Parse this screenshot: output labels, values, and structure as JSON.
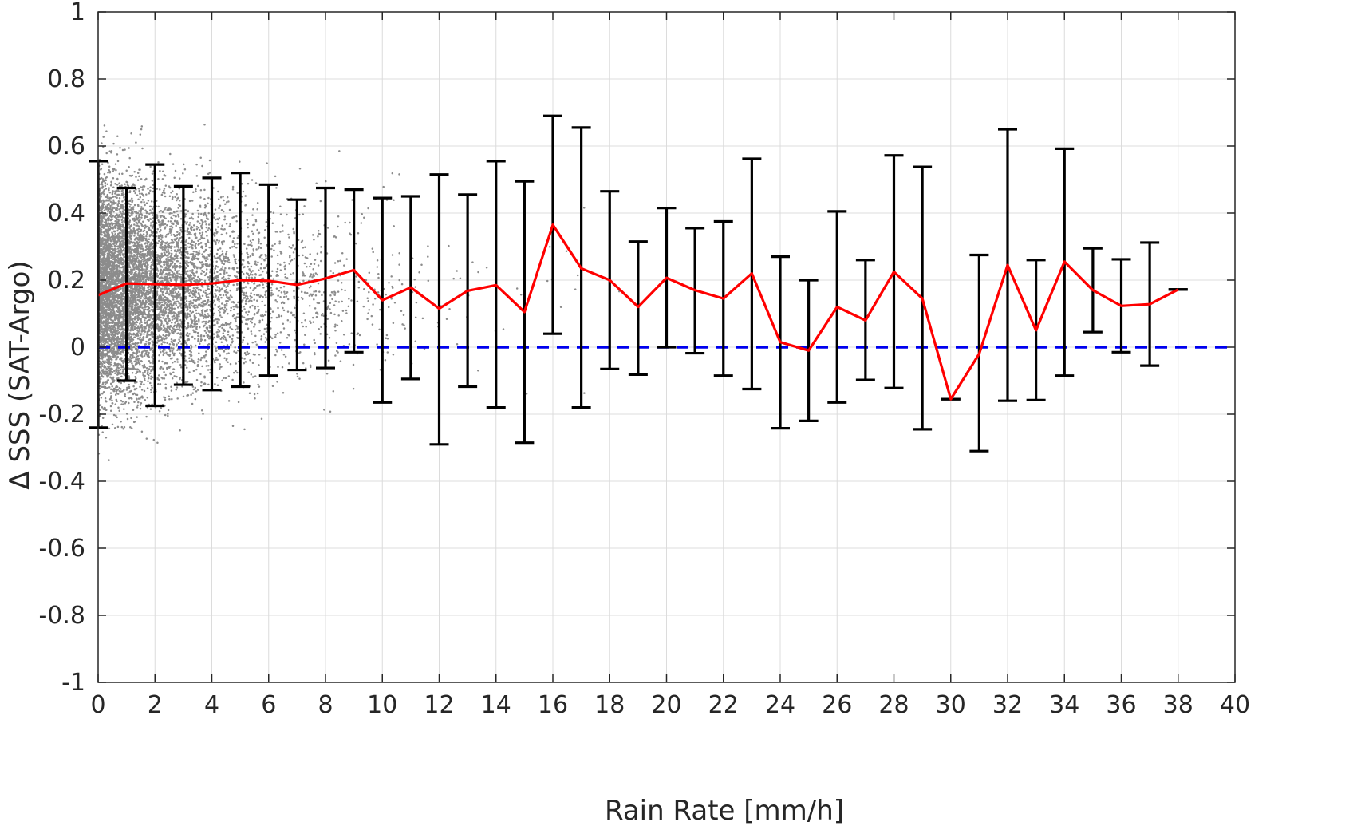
{
  "chart_data": {
    "type": "scatter",
    "title": "",
    "xlabel": "Rain Rate [mm/h]",
    "ylabel": "Δ SSS (SAT-Argo)",
    "xlim": [
      0,
      40
    ],
    "ylim": [
      -1,
      1
    ],
    "xticks": [
      0,
      2,
      4,
      6,
      8,
      10,
      12,
      14,
      16,
      18,
      20,
      22,
      24,
      26,
      28,
      30,
      32,
      34,
      36,
      38,
      40
    ],
    "yticks": [
      -1,
      -0.8,
      -0.6,
      -0.4,
      -0.2,
      0,
      0.2,
      0.4,
      0.6,
      0.8,
      1
    ],
    "xtick_labels": [
      "0",
      "2",
      "4",
      "6",
      "8",
      "10",
      "12",
      "14",
      "16",
      "18",
      "20",
      "22",
      "24",
      "26",
      "28",
      "30",
      "32",
      "34",
      "36",
      "38",
      "40"
    ],
    "ytick_labels": [
      "-1",
      "-0.8",
      "-0.6",
      "-0.4",
      "-0.2",
      "0",
      "0.2",
      "0.4",
      "0.6",
      "0.8",
      "1"
    ],
    "grid": true,
    "colors": {
      "scatter": "#8c8c8c",
      "mean_line": "#ff0000",
      "error_bar": "#000000",
      "zero_line": "#0000ee",
      "grid": "#dcdcdc",
      "axis": "#262626"
    },
    "mean_series": {
      "x": [
        0,
        1,
        2,
        3,
        4,
        5,
        6,
        7,
        8,
        9,
        10,
        11,
        12,
        13,
        14,
        15,
        16,
        17,
        18,
        19,
        20,
        21,
        22,
        23,
        24,
        25,
        26,
        27,
        28,
        29,
        30,
        31,
        32,
        33,
        34,
        35,
        36,
        37,
        38
      ],
      "y": [
        0.155,
        0.19,
        0.188,
        0.186,
        0.19,
        0.2,
        0.198,
        0.186,
        0.205,
        0.23,
        0.14,
        0.178,
        0.115,
        0.168,
        0.185,
        0.105,
        0.365,
        0.235,
        0.2,
        0.12,
        0.207,
        0.17,
        0.145,
        0.22,
        0.015,
        -0.01,
        0.12,
        0.08,
        0.225,
        0.145,
        -0.155,
        -0.02,
        0.245,
        0.05,
        0.255,
        0.17,
        0.123,
        0.128,
        0.172
      ]
    },
    "error_bars": {
      "x": [
        0,
        1,
        2,
        3,
        4,
        5,
        6,
        7,
        8,
        9,
        10,
        11,
        12,
        13,
        14,
        15,
        16,
        17,
        18,
        19,
        20,
        21,
        22,
        23,
        24,
        25,
        26,
        27,
        28,
        29,
        30,
        31,
        32,
        33,
        34,
        35,
        36,
        37,
        38
      ],
      "upper": [
        0.555,
        0.475,
        0.545,
        0.48,
        0.505,
        0.52,
        0.485,
        0.44,
        0.475,
        0.47,
        0.445,
        0.45,
        0.515,
        0.455,
        0.555,
        0.495,
        0.69,
        0.655,
        0.465,
        0.315,
        0.415,
        0.355,
        0.375,
        0.562,
        0.27,
        0.2,
        0.405,
        0.26,
        0.572,
        0.538,
        -0.155,
        0.275,
        0.65,
        0.26,
        0.592,
        0.295,
        0.262,
        0.312,
        0.172
      ],
      "lower": [
        -0.24,
        -0.1,
        -0.175,
        -0.112,
        -0.128,
        -0.118,
        -0.085,
        -0.068,
        -0.062,
        -0.015,
        -0.165,
        -0.095,
        -0.29,
        -0.118,
        -0.18,
        -0.285,
        0.04,
        -0.18,
        -0.065,
        -0.082,
        0.0,
        -0.018,
        -0.085,
        -0.125,
        -0.242,
        -0.22,
        -0.165,
        -0.098,
        -0.122,
        -0.245,
        -0.155,
        -0.31,
        -0.16,
        -0.158,
        -0.085,
        0.045,
        -0.015,
        -0.055,
        0.172
      ]
    },
    "zero_line": {
      "y": 0,
      "style": "dashed"
    },
    "scatter_points": {
      "description_count": 8000,
      "seed": 12345
    }
  }
}
